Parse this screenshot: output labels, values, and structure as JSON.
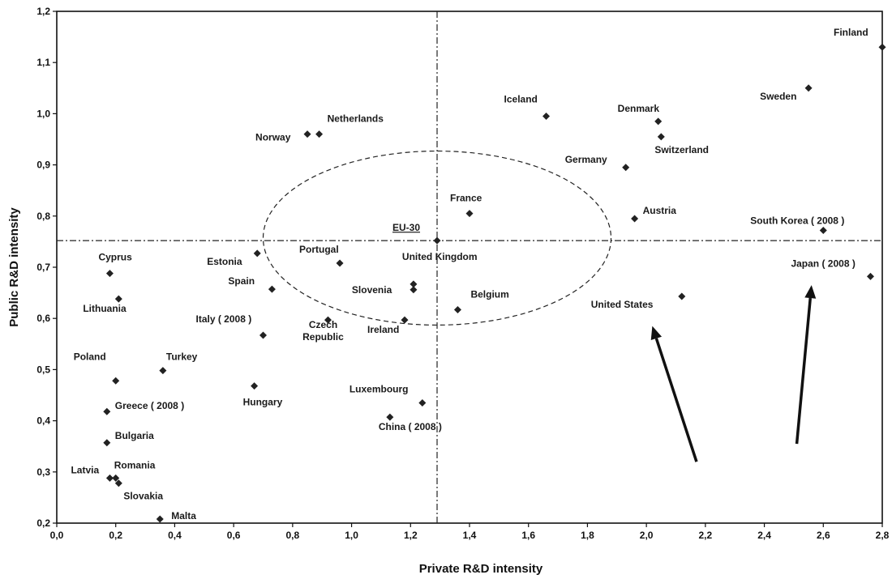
{
  "chart_data": {
    "type": "scatter",
    "title": "",
    "xlabel": "Private R&D intensity",
    "ylabel": "Public R&D intensity",
    "xlim": [
      0.0,
      2.8
    ],
    "ylim": [
      0.2,
      1.2
    ],
    "x_ticks": [
      "0,0",
      "0,2",
      "0,4",
      "0,6",
      "0,8",
      "1,0",
      "1,2",
      "1,4",
      "1,6",
      "1,8",
      "2,0",
      "2,2",
      "2,4",
      "2,6",
      "2,8"
    ],
    "y_ticks": [
      "0,2",
      "0,3",
      "0,4",
      "0,5",
      "0,6",
      "0,7",
      "0,8",
      "0,9",
      "1,0",
      "1,1",
      "1,2"
    ],
    "grid": false,
    "legend": "none",
    "reference_lines": {
      "x": 1.29,
      "y": 0.752
    },
    "ellipse": {
      "cx": 1.29,
      "cy": 0.757,
      "rx": 0.59,
      "ry": 0.17
    },
    "points": [
      {
        "label": "Finland",
        "x": 2.8,
        "y": 1.13
      },
      {
        "label": "Sweden",
        "x": 2.55,
        "y": 1.05
      },
      {
        "label": "Iceland",
        "x": 1.66,
        "y": 0.995
      },
      {
        "label": "Denmark",
        "x": 2.04,
        "y": 0.985
      },
      {
        "label": "Switzerland",
        "x": 2.05,
        "y": 0.955
      },
      {
        "label": "Netherlands",
        "x": 0.89,
        "y": 0.96
      },
      {
        "label": "Norway",
        "x": 0.85,
        "y": 0.96
      },
      {
        "label": "Germany",
        "x": 1.93,
        "y": 0.895
      },
      {
        "label": "France",
        "x": 1.4,
        "y": 0.805
      },
      {
        "label": "Austria",
        "x": 1.96,
        "y": 0.795
      },
      {
        "label": "South Korea ( 2008 )",
        "x": 2.6,
        "y": 0.772
      },
      {
        "label": "EU-30",
        "x": 1.29,
        "y": 0.752
      },
      {
        "label": "Estonia",
        "x": 0.68,
        "y": 0.727
      },
      {
        "label": "Portugal",
        "x": 0.96,
        "y": 0.708
      },
      {
        "label": "Cyprus",
        "x": 0.18,
        "y": 0.688
      },
      {
        "label": "Japan ( 2008 )",
        "x": 2.76,
        "y": 0.682
      },
      {
        "label": "United Kingdom",
        "x": 1.21,
        "y": 0.667
      },
      {
        "label": "Slovenia",
        "x": 1.21,
        "y": 0.656
      },
      {
        "label": "Spain",
        "x": 0.73,
        "y": 0.657
      },
      {
        "label": "United States",
        "x": 2.12,
        "y": 0.643
      },
      {
        "label": "Lithuania",
        "x": 0.21,
        "y": 0.638
      },
      {
        "label": "Belgium",
        "x": 1.36,
        "y": 0.617
      },
      {
        "label": "Czech Republic",
        "x": 0.92,
        "y": 0.597
      },
      {
        "label": "Ireland",
        "x": 1.18,
        "y": 0.597
      },
      {
        "label": "Italy ( 2008 )",
        "x": 0.7,
        "y": 0.567
      },
      {
        "label": "Turkey",
        "x": 0.36,
        "y": 0.498
      },
      {
        "label": "Poland",
        "x": 0.2,
        "y": 0.478
      },
      {
        "label": "Hungary",
        "x": 0.67,
        "y": 0.468
      },
      {
        "label": "Luxembourg",
        "x": 1.24,
        "y": 0.435
      },
      {
        "label": "Greece ( 2008 )",
        "x": 0.17,
        "y": 0.418
      },
      {
        "label": "China ( 2008 )",
        "x": 1.13,
        "y": 0.407
      },
      {
        "label": "Bulgaria",
        "x": 0.17,
        "y": 0.357
      },
      {
        "label": "Latvia",
        "x": 0.18,
        "y": 0.288
      },
      {
        "label": "Romania",
        "x": 0.2,
        "y": 0.288
      },
      {
        "label": "Slovakia",
        "x": 0.21,
        "y": 0.278
      },
      {
        "label": "Malta",
        "x": 0.35,
        "y": 0.208
      }
    ],
    "arrows": [
      {
        "from": [
          2.17,
          0.32
        ],
        "to": [
          2.02,
          0.585
        ]
      },
      {
        "from": [
          2.51,
          0.355
        ],
        "to": [
          2.56,
          0.665
        ]
      }
    ]
  }
}
